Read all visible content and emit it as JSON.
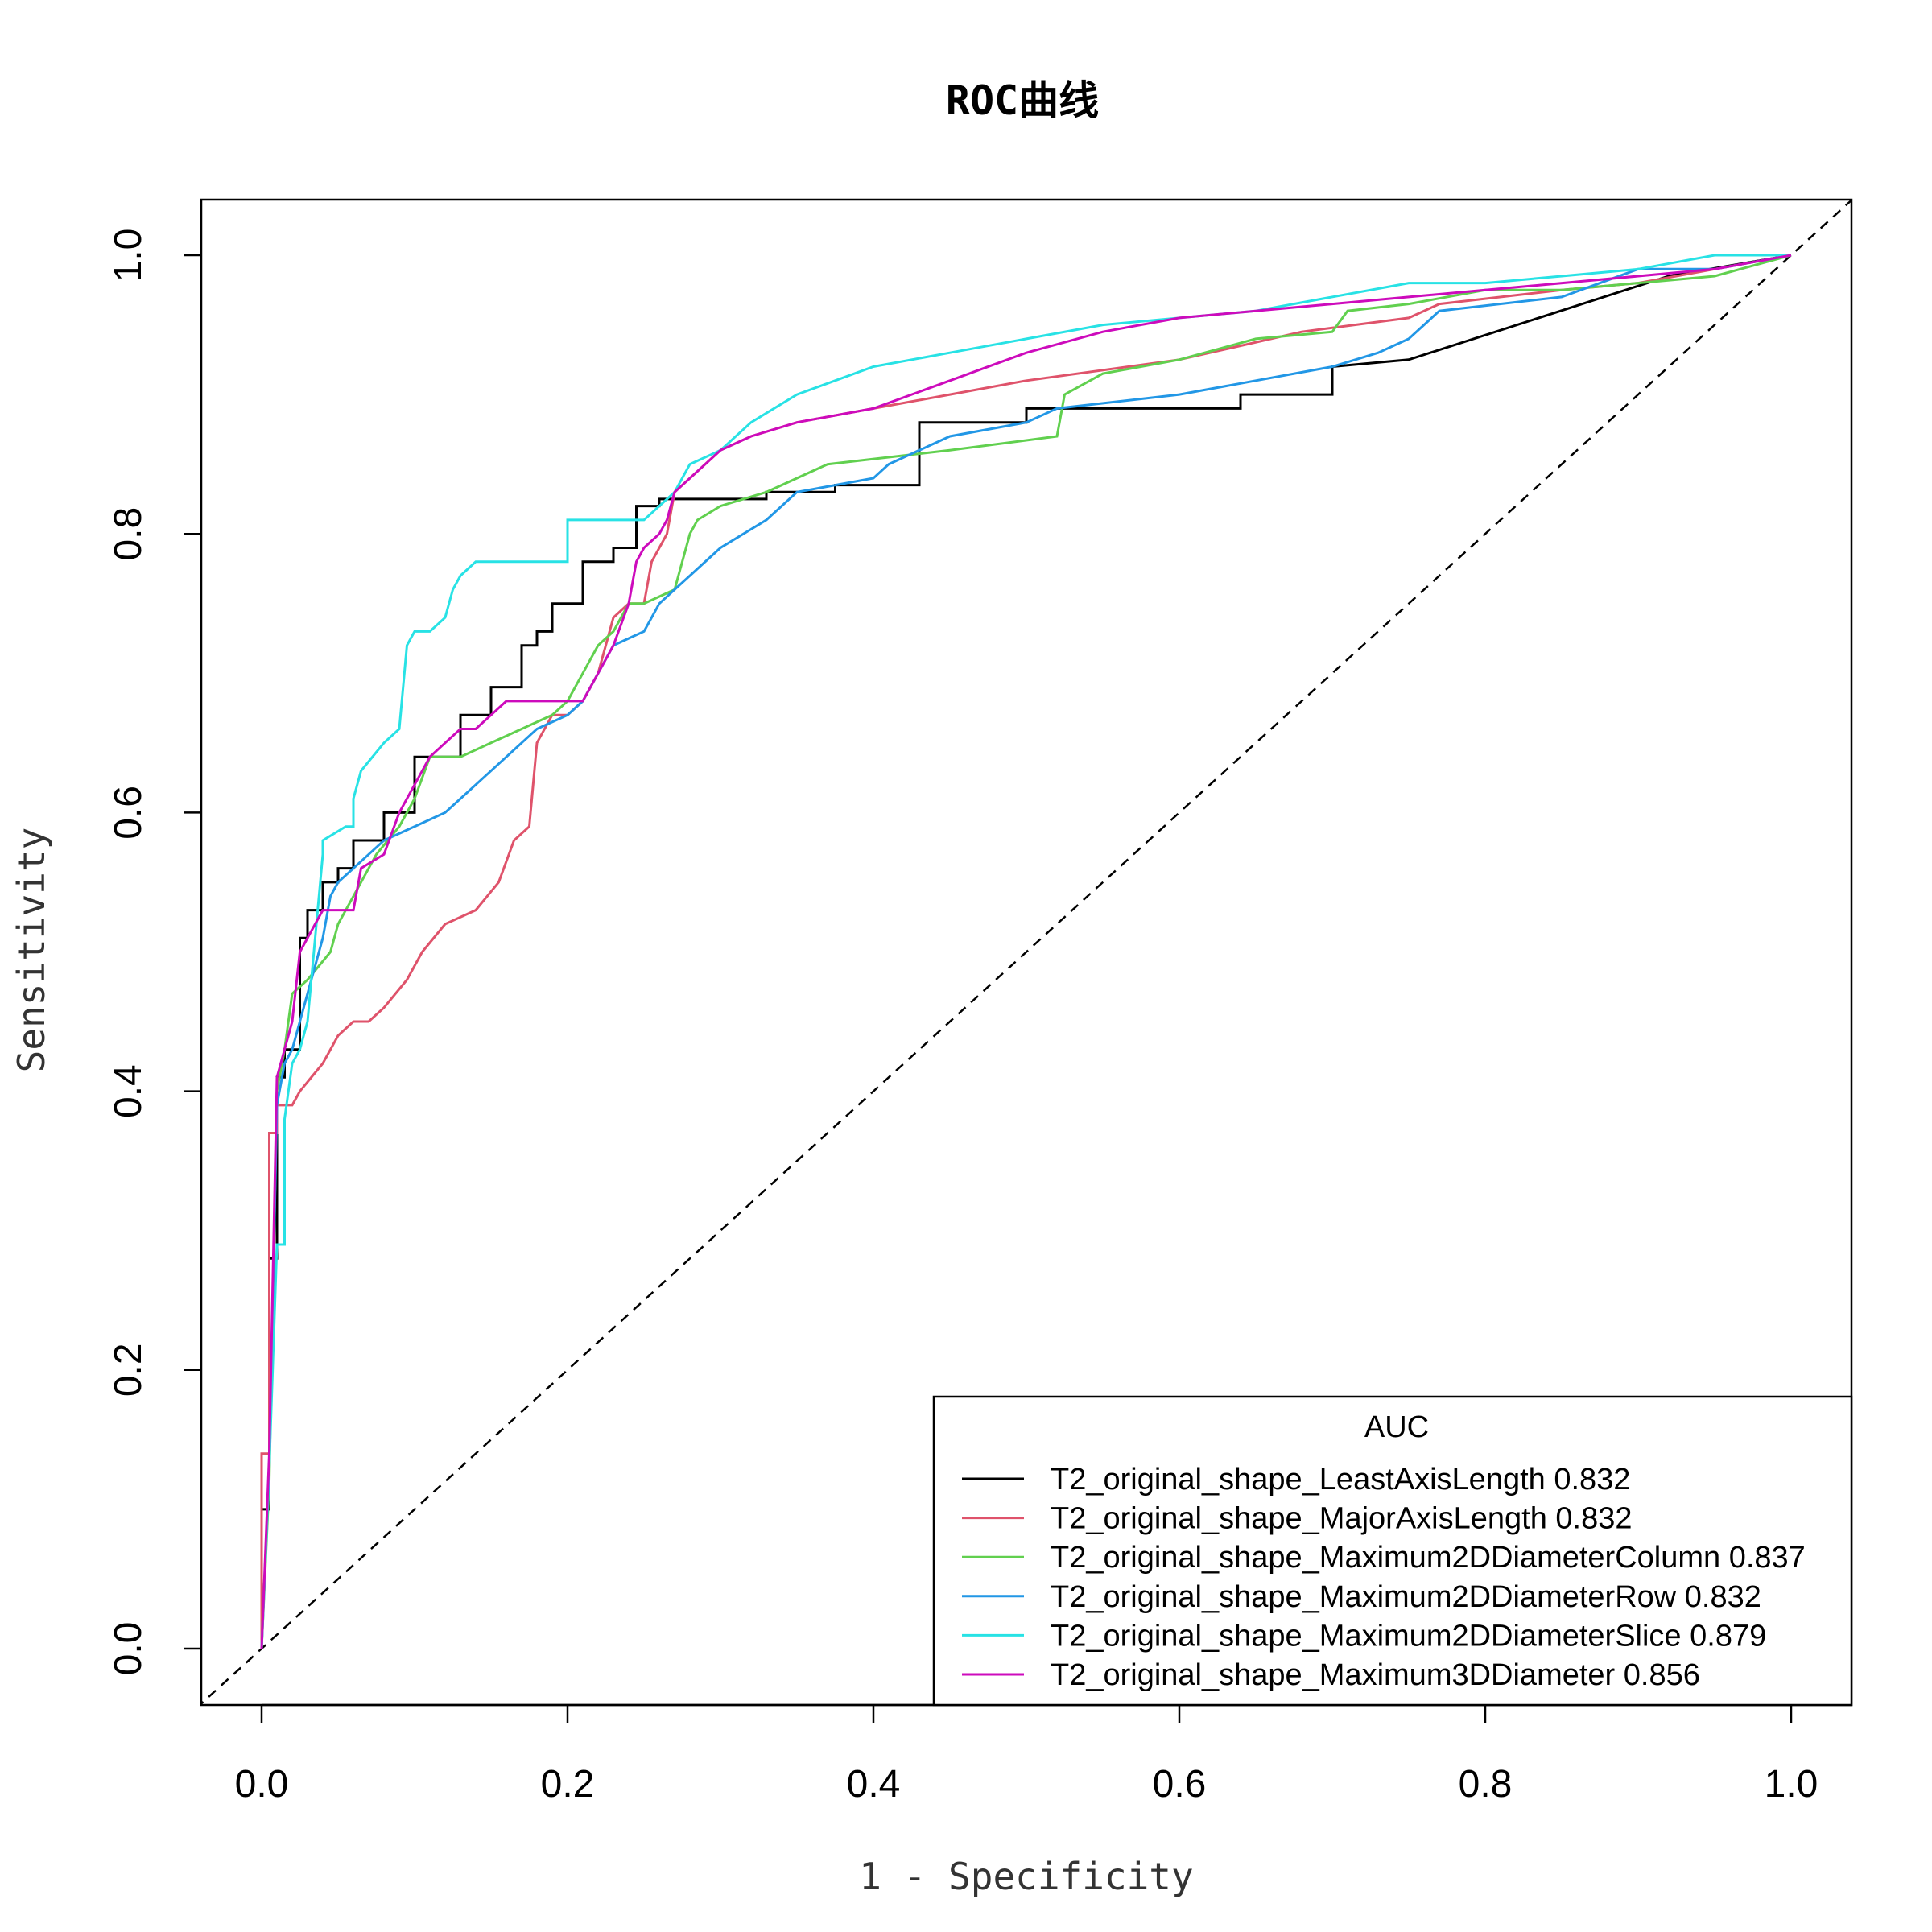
{
  "chart_data": {
    "type": "line",
    "title": "ROC曲线",
    "xlabel": "1 - Specificity",
    "ylabel": "Sensitivity",
    "xlim": [
      -0.04,
      1.04
    ],
    "ylim": [
      -0.04,
      1.04
    ],
    "xticks": [
      "0.0",
      "0.2",
      "0.4",
      "0.6",
      "0.8",
      "1.0"
    ],
    "yticks": [
      "0.0",
      "0.2",
      "0.4",
      "0.6",
      "0.8",
      "1.0"
    ],
    "grid": false,
    "reference_line": {
      "x": [
        0,
        1
      ],
      "y": [
        0,
        1
      ],
      "style": "dashed",
      "color": "#000000"
    },
    "legend": {
      "title": "AUC",
      "placement": "bottom-right"
    },
    "series": [
      {
        "name": "T2_original_shape_LeastAxisLength 0.832",
        "color": "#000000",
        "x": [
          0,
          0,
          0.005,
          0.005,
          0.01,
          0.01,
          0.015,
          0.015,
          0.025,
          0.025,
          0.03,
          0.03,
          0.04,
          0.04,
          0.05,
          0.05,
          0.06,
          0.06,
          0.08,
          0.08,
          0.1,
          0.1,
          0.13,
          0.13,
          0.15,
          0.15,
          0.17,
          0.17,
          0.18,
          0.18,
          0.19,
          0.19,
          0.21,
          0.21,
          0.23,
          0.23,
          0.245,
          0.245,
          0.26,
          0.26,
          0.33,
          0.33,
          0.375,
          0.375,
          0.43,
          0.43,
          0.5,
          0.5,
          0.64,
          0.64,
          0.7,
          0.7,
          0.75,
          0.92,
          1.0
        ],
        "y": [
          0,
          0.1,
          0.1,
          0.28,
          0.28,
          0.41,
          0.41,
          0.43,
          0.43,
          0.51,
          0.51,
          0.53,
          0.53,
          0.55,
          0.55,
          0.56,
          0.56,
          0.58,
          0.58,
          0.6,
          0.6,
          0.64,
          0.64,
          0.67,
          0.67,
          0.69,
          0.69,
          0.72,
          0.72,
          0.73,
          0.73,
          0.75,
          0.75,
          0.78,
          0.78,
          0.79,
          0.79,
          0.82,
          0.82,
          0.825,
          0.825,
          0.83,
          0.83,
          0.835,
          0.835,
          0.88,
          0.88,
          0.89,
          0.89,
          0.9,
          0.9,
          0.92,
          0.925,
          0.985,
          1.0
        ]
      },
      {
        "name": "T2_original_shape_MajorAxisLength 0.832",
        "color": "#DF536B",
        "x": [
          0,
          0,
          0.005,
          0.005,
          0.01,
          0.01,
          0.02,
          0.025,
          0.04,
          0.05,
          0.06,
          0.07,
          0.08,
          0.095,
          0.105,
          0.12,
          0.14,
          0.155,
          0.165,
          0.175,
          0.18,
          0.19,
          0.2,
          0.21,
          0.22,
          0.225,
          0.23,
          0.24,
          0.25,
          0.255,
          0.26,
          0.265,
          0.27,
          0.28,
          0.3,
          0.32,
          0.35,
          0.4,
          0.45,
          0.5,
          0.6,
          0.62,
          0.68,
          0.75,
          0.77,
          0.85,
          0.9,
          0.95,
          1.0
        ],
        "y": [
          0,
          0.14,
          0.14,
          0.37,
          0.37,
          0.39,
          0.39,
          0.4,
          0.42,
          0.44,
          0.45,
          0.45,
          0.46,
          0.48,
          0.5,
          0.52,
          0.53,
          0.55,
          0.58,
          0.59,
          0.65,
          0.67,
          0.67,
          0.68,
          0.7,
          0.72,
          0.74,
          0.75,
          0.75,
          0.78,
          0.79,
          0.8,
          0.83,
          0.84,
          0.86,
          0.87,
          0.88,
          0.89,
          0.9,
          0.91,
          0.925,
          0.93,
          0.945,
          0.955,
          0.965,
          0.975,
          0.98,
          0.99,
          1.0
        ]
      },
      {
        "name": "T2_original_shape_Maximum2DDiameterColumn 0.837",
        "color": "#61D04F",
        "x": [
          0,
          0.005,
          0.005,
          0.01,
          0.01,
          0.015,
          0.02,
          0.03,
          0.045,
          0.05,
          0.06,
          0.075,
          0.09,
          0.1,
          0.11,
          0.13,
          0.15,
          0.17,
          0.19,
          0.2,
          0.21,
          0.22,
          0.23,
          0.24,
          0.25,
          0.27,
          0.28,
          0.285,
          0.3,
          0.33,
          0.37,
          0.45,
          0.52,
          0.525,
          0.55,
          0.6,
          0.65,
          0.7,
          0.71,
          0.75,
          0.8,
          0.85,
          0.9,
          0.95,
          1.0
        ],
        "y": [
          0,
          0.12,
          0.12,
          0.4,
          0.4,
          0.43,
          0.47,
          0.48,
          0.5,
          0.52,
          0.54,
          0.57,
          0.59,
          0.61,
          0.64,
          0.64,
          0.65,
          0.66,
          0.67,
          0.68,
          0.7,
          0.72,
          0.73,
          0.75,
          0.75,
          0.76,
          0.8,
          0.81,
          0.82,
          0.83,
          0.85,
          0.86,
          0.87,
          0.9,
          0.915,
          0.925,
          0.94,
          0.945,
          0.96,
          0.965,
          0.975,
          0.975,
          0.98,
          0.985,
          1.0
        ]
      },
      {
        "name": "T2_original_shape_Maximum2DDiameterRow 0.832",
        "color": "#2297E6",
        "x": [
          0,
          0.005,
          0.005,
          0.01,
          0.015,
          0.02,
          0.025,
          0.03,
          0.035,
          0.04,
          0.045,
          0.05,
          0.06,
          0.07,
          0.08,
          0.1,
          0.12,
          0.13,
          0.14,
          0.16,
          0.17,
          0.18,
          0.2,
          0.21,
          0.22,
          0.23,
          0.25,
          0.26,
          0.27,
          0.28,
          0.3,
          0.33,
          0.34,
          0.35,
          0.4,
          0.41,
          0.43,
          0.45,
          0.5,
          0.52,
          0.6,
          0.65,
          0.7,
          0.73,
          0.75,
          0.77,
          0.85,
          0.9,
          0.95,
          1.0
        ],
        "y": [
          0,
          0.13,
          0.13,
          0.39,
          0.42,
          0.43,
          0.45,
          0.47,
          0.49,
          0.51,
          0.54,
          0.55,
          0.56,
          0.57,
          0.58,
          0.59,
          0.6,
          0.61,
          0.62,
          0.64,
          0.65,
          0.66,
          0.67,
          0.68,
          0.7,
          0.72,
          0.73,
          0.75,
          0.76,
          0.77,
          0.79,
          0.81,
          0.82,
          0.83,
          0.84,
          0.85,
          0.86,
          0.87,
          0.88,
          0.89,
          0.9,
          0.91,
          0.92,
          0.93,
          0.94,
          0.96,
          0.97,
          0.99,
          0.99,
          1.0
        ]
      },
      {
        "name": "T2_original_shape_Maximum2DDiameterSlice 0.879",
        "color": "#28E2E5",
        "x": [
          0,
          0.005,
          0.005,
          0.01,
          0.015,
          0.015,
          0.02,
          0.025,
          0.03,
          0.04,
          0.04,
          0.055,
          0.06,
          0.06,
          0.065,
          0.08,
          0.09,
          0.095,
          0.1,
          0.11,
          0.12,
          0.125,
          0.13,
          0.14,
          0.2,
          0.2,
          0.25,
          0.26,
          0.27,
          0.28,
          0.3,
          0.32,
          0.35,
          0.4,
          0.45,
          0.5,
          0.55,
          0.65,
          0.75,
          0.8,
          0.85,
          0.9,
          0.95,
          1.0
        ],
        "y": [
          0,
          0.13,
          0.13,
          0.29,
          0.29,
          0.38,
          0.42,
          0.43,
          0.45,
          0.57,
          0.58,
          0.59,
          0.59,
          0.61,
          0.63,
          0.65,
          0.66,
          0.72,
          0.73,
          0.73,
          0.74,
          0.76,
          0.77,
          0.78,
          0.78,
          0.81,
          0.81,
          0.82,
          0.83,
          0.85,
          0.86,
          0.88,
          0.9,
          0.92,
          0.93,
          0.94,
          0.95,
          0.96,
          0.98,
          0.98,
          0.985,
          0.99,
          1.0,
          1.0
        ]
      },
      {
        "name": "T2_original_shape_Maximum3DDiameter 0.856",
        "color": "#CD0BBC",
        "x": [
          0,
          0.005,
          0.005,
          0.01,
          0.02,
          0.025,
          0.03,
          0.035,
          0.04,
          0.06,
          0.065,
          0.08,
          0.09,
          0.1,
          0.11,
          0.12,
          0.13,
          0.14,
          0.15,
          0.16,
          0.18,
          0.19,
          0.2,
          0.21,
          0.22,
          0.23,
          0.24,
          0.245,
          0.25,
          0.26,
          0.265,
          0.27,
          0.29,
          0.3,
          0.32,
          0.35,
          0.4,
          0.45,
          0.5,
          0.55,
          0.6,
          0.65,
          0.7,
          0.75,
          0.8,
          0.9,
          0.95,
          1.0
        ],
        "y": [
          0,
          0.14,
          0.14,
          0.41,
          0.45,
          0.5,
          0.51,
          0.52,
          0.53,
          0.53,
          0.56,
          0.57,
          0.6,
          0.62,
          0.64,
          0.65,
          0.66,
          0.66,
          0.67,
          0.68,
          0.68,
          0.68,
          0.68,
          0.68,
          0.7,
          0.72,
          0.75,
          0.78,
          0.79,
          0.8,
          0.81,
          0.83,
          0.85,
          0.86,
          0.87,
          0.88,
          0.89,
          0.91,
          0.93,
          0.945,
          0.955,
          0.96,
          0.965,
          0.97,
          0.975,
          0.985,
          0.99,
          1.0
        ]
      }
    ]
  }
}
